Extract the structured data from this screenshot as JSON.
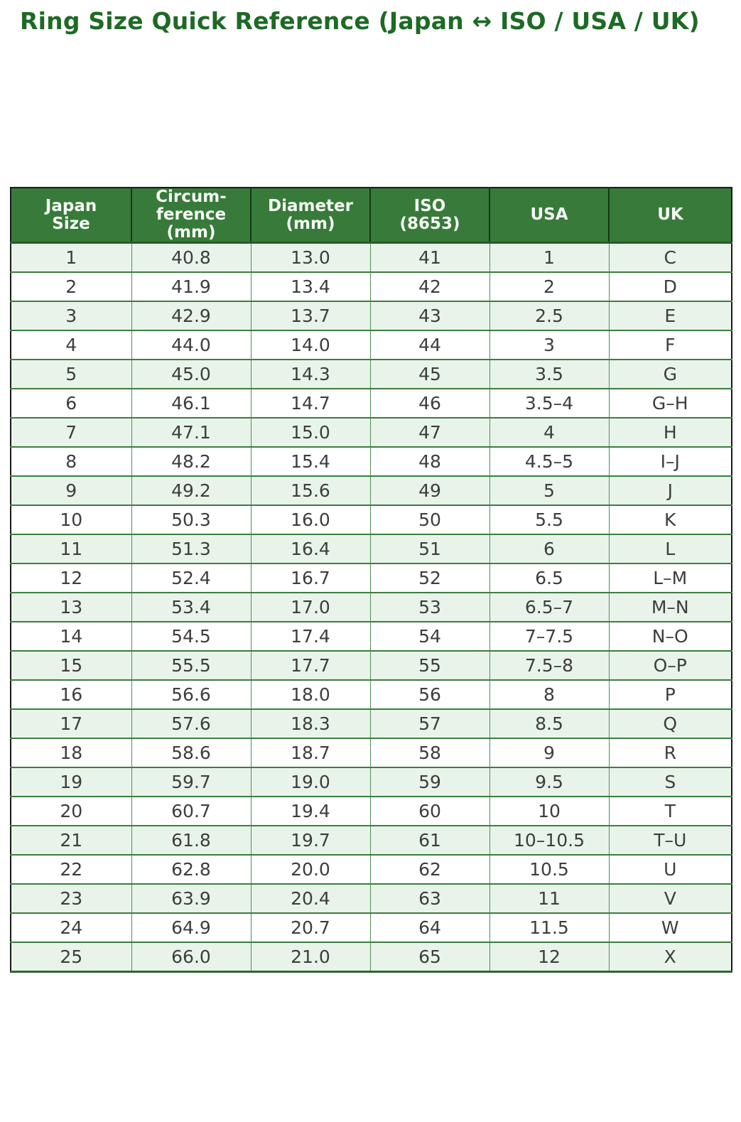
{
  "title": "Ring Size Quick Reference (Japan ↔ ISO / USA / UK)",
  "chart_data": {
    "type": "table",
    "title": "Ring Size Quick Reference (Japan ↔ ISO / USA / UK)",
    "columns": [
      "Japan\nSize",
      "Circum-\nference\n(mm)",
      "Diameter\n(mm)",
      "ISO\n(8653)",
      "USA",
      "UK"
    ],
    "rows": [
      [
        "1",
        "40.8",
        "13.0",
        "41",
        "1",
        "C"
      ],
      [
        "2",
        "41.9",
        "13.4",
        "42",
        "2",
        "D"
      ],
      [
        "3",
        "42.9",
        "13.7",
        "43",
        "2.5",
        "E"
      ],
      [
        "4",
        "44.0",
        "14.0",
        "44",
        "3",
        "F"
      ],
      [
        "5",
        "45.0",
        "14.3",
        "45",
        "3.5",
        "G"
      ],
      [
        "6",
        "46.1",
        "14.7",
        "46",
        "3.5–4",
        "G–H"
      ],
      [
        "7",
        "47.1",
        "15.0",
        "47",
        "4",
        "H"
      ],
      [
        "8",
        "48.2",
        "15.4",
        "48",
        "4.5–5",
        "I–J"
      ],
      [
        "9",
        "49.2",
        "15.6",
        "49",
        "5",
        "J"
      ],
      [
        "10",
        "50.3",
        "16.0",
        "50",
        "5.5",
        "K"
      ],
      [
        "11",
        "51.3",
        "16.4",
        "51",
        "6",
        "L"
      ],
      [
        "12",
        "52.4",
        "16.7",
        "52",
        "6.5",
        "L–M"
      ],
      [
        "13",
        "53.4",
        "17.0",
        "53",
        "6.5–7",
        "M–N"
      ],
      [
        "14",
        "54.5",
        "17.4",
        "54",
        "7–7.5",
        "N–O"
      ],
      [
        "15",
        "55.5",
        "17.7",
        "55",
        "7.5–8",
        "O–P"
      ],
      [
        "16",
        "56.6",
        "18.0",
        "56",
        "8",
        "P"
      ],
      [
        "17",
        "57.6",
        "18.3",
        "57",
        "8.5",
        "Q"
      ],
      [
        "18",
        "58.6",
        "18.7",
        "58",
        "9",
        "R"
      ],
      [
        "19",
        "59.7",
        "19.0",
        "59",
        "9.5",
        "S"
      ],
      [
        "20",
        "60.7",
        "19.4",
        "60",
        "10",
        "T"
      ],
      [
        "21",
        "61.8",
        "19.7",
        "61",
        "10–10.5",
        "T–U"
      ],
      [
        "22",
        "62.8",
        "20.0",
        "62",
        "10.5",
        "U"
      ],
      [
        "23",
        "63.9",
        "20.4",
        "63",
        "11",
        "V"
      ],
      [
        "24",
        "64.9",
        "20.7",
        "64",
        "11.5",
        "W"
      ],
      [
        "25",
        "66.0",
        "21.0",
        "65",
        "12",
        "X"
      ]
    ],
    "layout": {
      "zebra_striping": "odd rows tinted pale green",
      "header_position": "top"
    }
  },
  "colors": {
    "title_green": "#1d6a24",
    "header_bg": "#387a3a",
    "header_text": "#f6fcf6",
    "row_alt_bg": "#e8f4e9",
    "row_bg": "#ffffff",
    "cell_text": "#3d3d3d",
    "row_border": "#3c7d3f",
    "col_border": "#4f8f53",
    "outer_border": "#1a1a1a"
  }
}
